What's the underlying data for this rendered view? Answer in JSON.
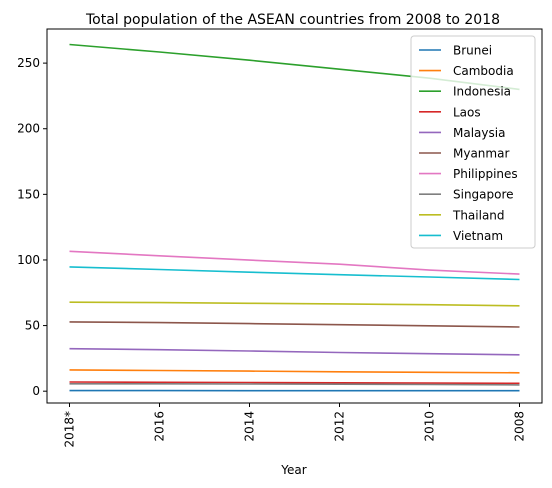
{
  "chart_data": {
    "type": "line",
    "title": "Total population of the ASEAN countries from 2008 to 2018",
    "xlabel": "Year",
    "ylabel": "",
    "categories": [
      "2018*",
      "2016",
      "2014",
      "2012",
      "2010",
      "2008"
    ],
    "x_tick_labels": [
      "2018*",
      "2016",
      "2014",
      "2012",
      "2010",
      "2008"
    ],
    "y_ticks": [
      0,
      50,
      100,
      150,
      200,
      250
    ],
    "ylim": [
      -9,
      276
    ],
    "grid": false,
    "legend_position": "top-right",
    "series": [
      {
        "name": "Brunei",
        "color": "#1f77b4",
        "values": [
          0.43,
          0.42,
          0.41,
          0.4,
          0.39,
          0.38
        ]
      },
      {
        "name": "Cambodia",
        "color": "#ff7f0e",
        "values": [
          16.2,
          15.8,
          15.3,
          14.8,
          14.4,
          14.0
        ]
      },
      {
        "name": "Indonesia",
        "color": "#2ca02c",
        "values": [
          264.2,
          258.5,
          252.2,
          245.4,
          238.5,
          230.0
        ]
      },
      {
        "name": "Laos",
        "color": "#d62728",
        "values": [
          7.0,
          6.8,
          6.6,
          6.4,
          6.2,
          6.0
        ]
      },
      {
        "name": "Malaysia",
        "color": "#9467bd",
        "values": [
          32.4,
          31.6,
          30.6,
          29.5,
          28.6,
          27.7
        ]
      },
      {
        "name": "Myanmar",
        "color": "#8c564b",
        "values": [
          52.8,
          52.3,
          51.5,
          50.7,
          49.8,
          48.9
        ]
      },
      {
        "name": "Philippines",
        "color": "#e377c2",
        "values": [
          106.6,
          103.2,
          99.9,
          96.8,
          92.3,
          89.2
        ]
      },
      {
        "name": "Singapore",
        "color": "#7f7f7f",
        "values": [
          5.6,
          5.6,
          5.5,
          5.3,
          5.1,
          4.8
        ]
      },
      {
        "name": "Thailand",
        "color": "#bcbd22",
        "values": [
          67.8,
          67.5,
          67.0,
          66.5,
          65.9,
          65.1
        ]
      },
      {
        "name": "Vietnam",
        "color": "#17becf",
        "values": [
          94.7,
          92.7,
          90.7,
          88.8,
          87.0,
          85.1
        ]
      }
    ]
  }
}
